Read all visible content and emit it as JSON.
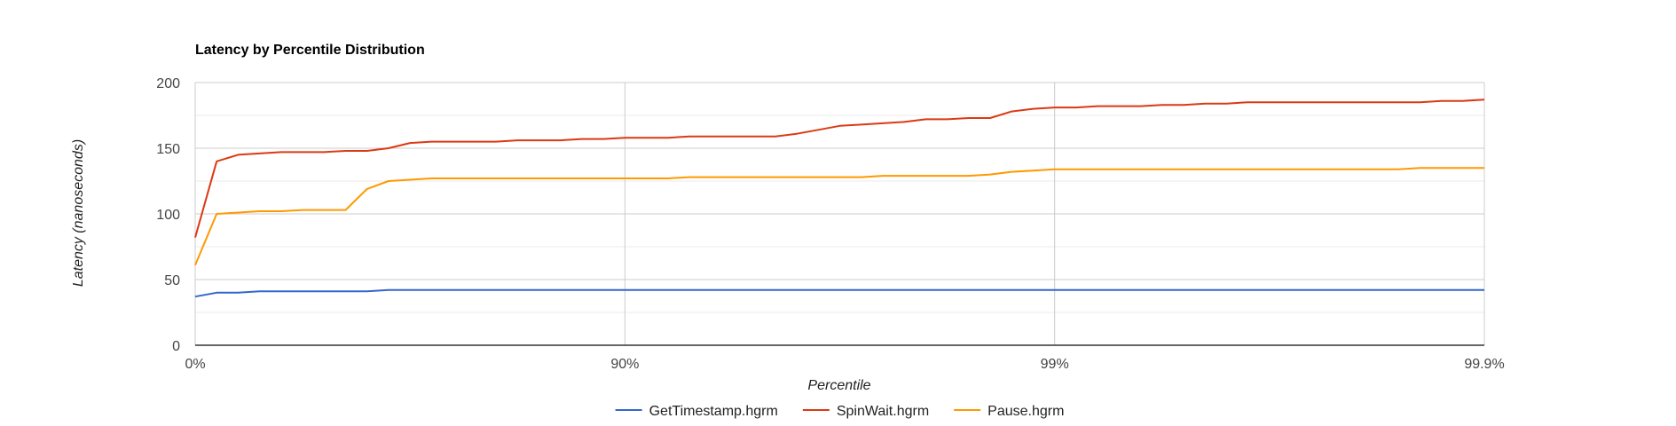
{
  "chart_data": {
    "type": "line",
    "title": "Latency by Percentile Distribution",
    "xlabel": "Percentile",
    "ylabel": "Latency (nanoseconds)",
    "x_scale": "log-percentile",
    "x_ticks": [
      "0%",
      "90%",
      "99%",
      "99.9%"
    ],
    "y_ticks": [
      "0",
      "50",
      "100",
      "150",
      "200"
    ],
    "ylim": [
      0,
      200
    ],
    "grid": true,
    "legend_position": "bottom",
    "series": [
      {
        "name": "GetTimestamp.hgrm",
        "color": "#3366cc",
        "x": [
          0,
          0.05,
          0.1,
          0.15,
          0.2,
          0.25,
          0.3,
          0.35,
          0.4,
          0.45,
          0.5,
          0.55,
          0.6,
          0.65,
          0.7,
          0.75,
          0.8,
          0.85,
          0.9,
          0.95,
          1,
          1.05,
          1.1,
          1.15,
          1.2,
          1.25,
          1.3,
          1.35,
          1.4,
          1.45,
          1.5,
          1.55,
          1.6,
          1.65,
          1.7,
          1.75,
          1.8,
          1.85,
          1.9,
          1.95,
          2,
          2.05,
          2.1,
          2.15,
          2.2,
          2.25,
          2.3,
          2.35,
          2.4,
          2.45,
          2.5,
          2.55,
          2.6,
          2.65,
          2.7,
          2.75,
          2.8,
          2.85,
          2.9,
          2.95,
          3
        ],
        "y": [
          37,
          40,
          40,
          41,
          41,
          41,
          41,
          41,
          41,
          42,
          42,
          42,
          42,
          42,
          42,
          42,
          42,
          42,
          42,
          42,
          42,
          42,
          42,
          42,
          42,
          42,
          42,
          42,
          42,
          42,
          42,
          42,
          42,
          42,
          42,
          42,
          42,
          42,
          42,
          42,
          42,
          42,
          42,
          42,
          42,
          42,
          42,
          42,
          42,
          42,
          42,
          42,
          42,
          42,
          42,
          42,
          42,
          42,
          42,
          42,
          42
        ]
      },
      {
        "name": "SpinWait.hgrm",
        "color": "#dc3912",
        "x": [
          0,
          0.05,
          0.1,
          0.15,
          0.2,
          0.25,
          0.3,
          0.35,
          0.4,
          0.45,
          0.5,
          0.55,
          0.6,
          0.65,
          0.7,
          0.75,
          0.8,
          0.85,
          0.9,
          0.95,
          1,
          1.05,
          1.1,
          1.15,
          1.2,
          1.25,
          1.3,
          1.35,
          1.4,
          1.45,
          1.5,
          1.55,
          1.6,
          1.65,
          1.7,
          1.75,
          1.8,
          1.85,
          1.9,
          1.95,
          2,
          2.05,
          2.1,
          2.15,
          2.2,
          2.25,
          2.3,
          2.35,
          2.4,
          2.45,
          2.5,
          2.55,
          2.6,
          2.65,
          2.7,
          2.75,
          2.8,
          2.85,
          2.9,
          2.95,
          3
        ],
        "y": [
          82,
          140,
          145,
          146,
          147,
          147,
          147,
          148,
          148,
          150,
          154,
          155,
          155,
          155,
          155,
          156,
          156,
          156,
          157,
          157,
          158,
          158,
          158,
          159,
          159,
          159,
          159,
          159,
          161,
          164,
          167,
          168,
          169,
          170,
          172,
          172,
          173,
          173,
          178,
          180,
          181,
          181,
          182,
          182,
          182,
          183,
          183,
          184,
          184,
          185,
          185,
          185,
          185,
          185,
          185,
          185,
          185,
          185,
          186,
          186,
          187
        ]
      },
      {
        "name": "Pause.hgrm",
        "color": "#ff9900",
        "x": [
          0,
          0.05,
          0.1,
          0.15,
          0.2,
          0.25,
          0.3,
          0.35,
          0.4,
          0.45,
          0.5,
          0.55,
          0.6,
          0.65,
          0.7,
          0.75,
          0.8,
          0.85,
          0.9,
          0.95,
          1,
          1.05,
          1.1,
          1.15,
          1.2,
          1.25,
          1.3,
          1.35,
          1.4,
          1.45,
          1.5,
          1.55,
          1.6,
          1.65,
          1.7,
          1.75,
          1.8,
          1.85,
          1.9,
          1.95,
          2,
          2.05,
          2.1,
          2.15,
          2.2,
          2.25,
          2.3,
          2.35,
          2.4,
          2.45,
          2.5,
          2.55,
          2.6,
          2.65,
          2.7,
          2.75,
          2.8,
          2.85,
          2.9,
          2.95,
          3
        ],
        "y": [
          61,
          100,
          101,
          102,
          102,
          103,
          103,
          103,
          119,
          125,
          126,
          127,
          127,
          127,
          127,
          127,
          127,
          127,
          127,
          127,
          127,
          127,
          127,
          128,
          128,
          128,
          128,
          128,
          128,
          128,
          128,
          128,
          129,
          129,
          129,
          129,
          129,
          130,
          132,
          133,
          134,
          134,
          134,
          134,
          134,
          134,
          134,
          134,
          134,
          134,
          134,
          134,
          134,
          134,
          134,
          134,
          134,
          135,
          135,
          135,
          135
        ]
      }
    ]
  }
}
